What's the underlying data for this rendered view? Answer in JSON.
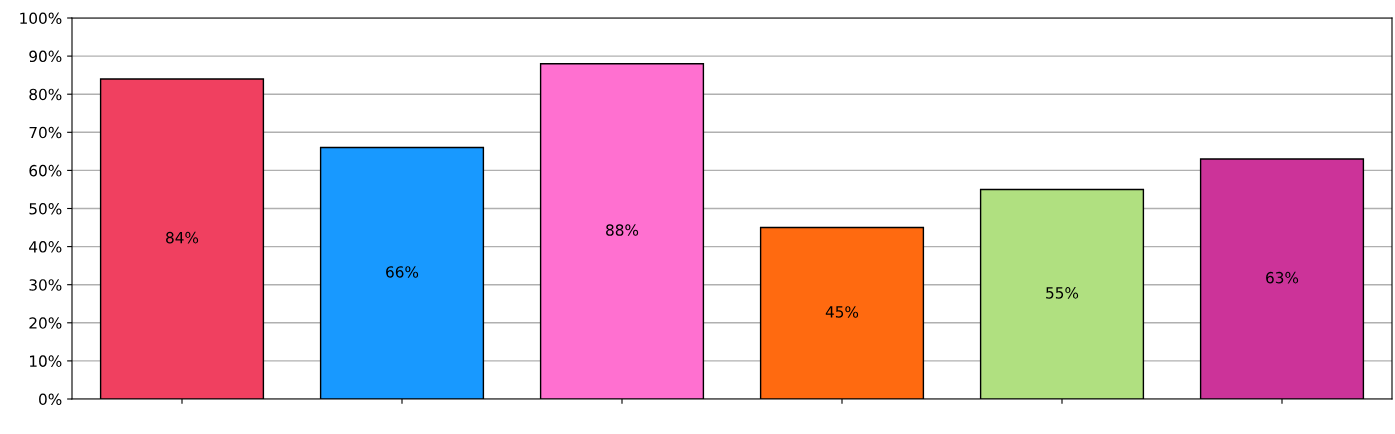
{
  "chart_data": {
    "type": "bar",
    "categories": [
      null,
      null,
      null,
      null,
      null,
      null
    ],
    "values": [
      84,
      66,
      88,
      45,
      55,
      63
    ],
    "colors": [
      "#f04060",
      "#1899ff",
      "#ff70d0",
      "#ff6a10",
      "#b0e080",
      "#cc3399"
    ],
    "value_labels": [
      "84%",
      "66%",
      "88%",
      "45%",
      "55%",
      "63%"
    ],
    "ylim": [
      0,
      100
    ],
    "yticks": [
      {
        "value": 0,
        "label": "0%"
      },
      {
        "value": 10,
        "label": "10%"
      },
      {
        "value": 20,
        "label": "20%"
      },
      {
        "value": 30,
        "label": "30%"
      },
      {
        "value": 40,
        "label": "40%"
      },
      {
        "value": 50,
        "label": "50%"
      },
      {
        "value": 60,
        "label": "60%"
      },
      {
        "value": 70,
        "label": "70%"
      },
      {
        "value": 80,
        "label": "80%"
      },
      {
        "value": 90,
        "label": "90%"
      },
      {
        "value": 100,
        "label": "100%"
      }
    ],
    "grid": "y",
    "legend": false
  }
}
